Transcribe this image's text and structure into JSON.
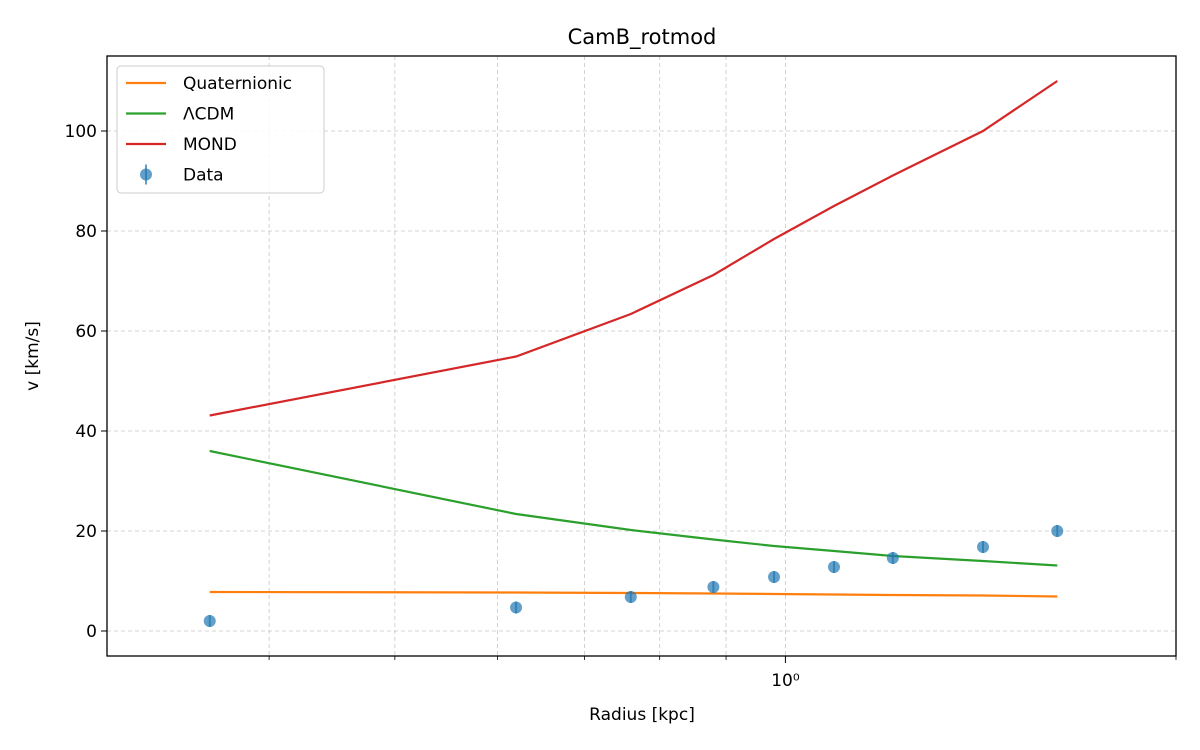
{
  "chart_data": {
    "type": "line",
    "title": "CamB_rotmod",
    "xlabel": "Radius [kpc]",
    "ylabel": "v [km/s]",
    "xscale": "log",
    "xlim": [
      0.3,
      2.0
    ],
    "ylim": [
      -5,
      115
    ],
    "grid": true,
    "legend_position": "top-left",
    "x": [
      0.36,
      0.62,
      0.76,
      0.88,
      0.98,
      1.09,
      1.21,
      1.42,
      1.62
    ],
    "series": [
      {
        "name": "Quaternionic",
        "kind": "line",
        "color": "#ff7f0e",
        "values": [
          7.8,
          7.7,
          7.6,
          7.5,
          7.4,
          7.3,
          7.2,
          7.1,
          6.9
        ]
      },
      {
        "name": "ΛCDM",
        "kind": "line",
        "color": "#2ca02c",
        "values": [
          36.0,
          23.4,
          20.2,
          18.3,
          17.0,
          16.0,
          15.0,
          14.0,
          13.1
        ]
      },
      {
        "name": "MOND",
        "kind": "line",
        "color": "#d62728",
        "values": [
          43.1,
          54.9,
          63.4,
          71.2,
          78.4,
          85.0,
          91.1,
          100.0,
          110.0
        ]
      },
      {
        "name": "Data",
        "kind": "errorbar",
        "color": "#1f77b4",
        "values": [
          2.0,
          4.7,
          6.8,
          8.8,
          10.8,
          12.8,
          14.6,
          16.8,
          20.0
        ],
        "errors": [
          1.2,
          1.2,
          1.2,
          1.2,
          1.2,
          1.2,
          1.2,
          1.2,
          1.2
        ]
      }
    ],
    "x_tick_labels": [
      {
        "value": 1.0,
        "label": "10⁰"
      }
    ],
    "x_minor_ticks": [
      0.4,
      0.5,
      0.6,
      0.7,
      0.8,
      0.9,
      2.0
    ],
    "y_ticks": [
      0,
      20,
      40,
      60,
      80,
      100
    ],
    "y_tick_labels": [
      "0",
      "20",
      "40",
      "60",
      "80",
      "100"
    ]
  }
}
